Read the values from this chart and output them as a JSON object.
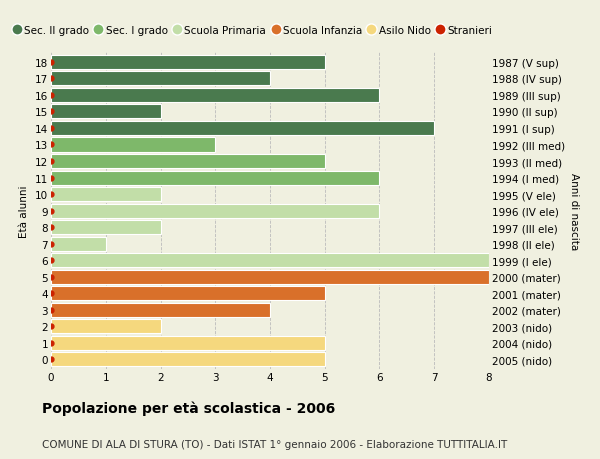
{
  "ages": [
    18,
    17,
    16,
    15,
    14,
    13,
    12,
    11,
    10,
    9,
    8,
    7,
    6,
    5,
    4,
    3,
    2,
    1,
    0
  ],
  "right_labels": [
    "1987 (V sup)",
    "1988 (IV sup)",
    "1989 (III sup)",
    "1990 (II sup)",
    "1991 (I sup)",
    "1992 (III med)",
    "1993 (II med)",
    "1994 (I med)",
    "1995 (V ele)",
    "1996 (IV ele)",
    "1997 (III ele)",
    "1998 (II ele)",
    "1999 (I ele)",
    "2000 (mater)",
    "2001 (mater)",
    "2002 (mater)",
    "2003 (nido)",
    "2004 (nido)",
    "2005 (nido)"
  ],
  "values": [
    5,
    4,
    6,
    2,
    7,
    3,
    5,
    6,
    2,
    6,
    2,
    1,
    8,
    8,
    5,
    4,
    2,
    5,
    5
  ],
  "colors": [
    "#4a7a4e",
    "#4a7a4e",
    "#4a7a4e",
    "#4a7a4e",
    "#4a7a4e",
    "#7eb86a",
    "#7eb86a",
    "#7eb86a",
    "#c2dea8",
    "#c2dea8",
    "#c2dea8",
    "#c2dea8",
    "#c2dea8",
    "#d9702a",
    "#d9702a",
    "#d9702a",
    "#f5d87e",
    "#f5d87e",
    "#f5d87e"
  ],
  "dot_color": "#cc2200",
  "legend_labels": [
    "Sec. II grado",
    "Sec. I grado",
    "Scuola Primaria",
    "Scuola Infanzia",
    "Asilo Nido",
    "Stranieri"
  ],
  "legend_colors": [
    "#4a7a4e",
    "#7eb86a",
    "#c2dea8",
    "#d9702a",
    "#f5d87e",
    "#cc2200"
  ],
  "title": "Popolazione per età scolastica - 2006",
  "subtitle": "COMUNE DI ALA DI STURA (TO) - Dati ISTAT 1° gennaio 2006 - Elaborazione TUTTITALIA.IT",
  "ylabel_left": "Età alunni",
  "ylabel_right": "Anni di nascita",
  "xlim": [
    0,
    8
  ],
  "background_color": "#f0f0e0",
  "grid_color": "#bbbbbb",
  "bar_height": 0.85,
  "title_fontsize": 10,
  "subtitle_fontsize": 7.5,
  "legend_fontsize": 7.5,
  "axis_fontsize": 7.5,
  "label_fontsize": 7.5
}
